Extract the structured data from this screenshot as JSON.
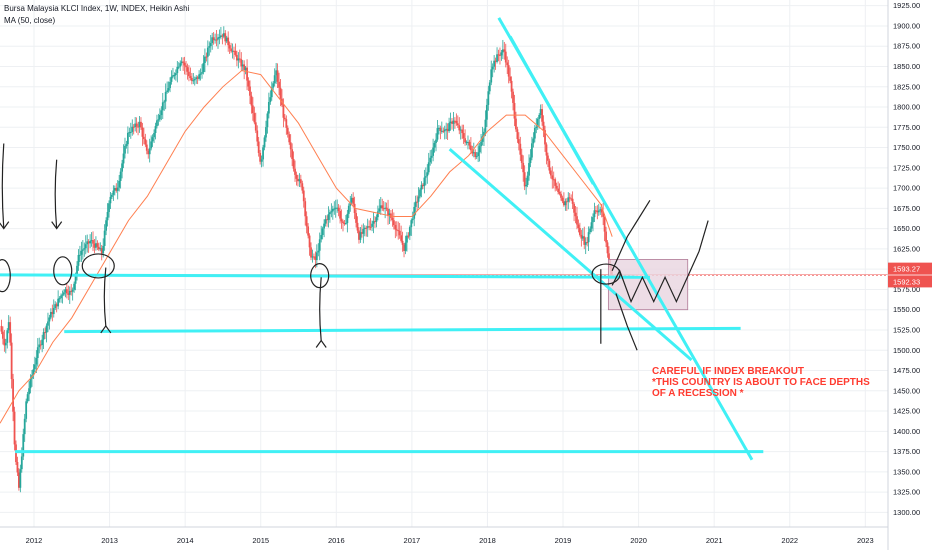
{
  "header": {
    "title": "Bursa Malaysia KLCI Index, 1W, INDEX, Heikin Ashi",
    "indicator": "MA (50, close)"
  },
  "colors": {
    "up": "#26a69a",
    "down": "#ef5350",
    "ma": "#ff7f50",
    "trendline": "#40f0f5",
    "annotation": "#ff3b30",
    "box": "#e8d5e0",
    "price_badge": "#ef5350",
    "grid": "#eef0f3"
  },
  "annotation": {
    "lines": [
      "CAREFUL IF INDEX BREAKOUT",
      "*THIS COUNTRY IS ABOUT TO FACE DEPTHS",
      "OF A RECESSION *"
    ]
  },
  "price_labels": {
    "last": "1593.27",
    "ma": "1592.33"
  },
  "chart_data": {
    "type": "candlestick",
    "style": "Heikin Ashi",
    "interval": "1W",
    "xlim": [
      2011.55,
      2023.3
    ],
    "ylim": [
      1282,
      1932
    ],
    "x_ticks": [
      "2012",
      "2013",
      "2014",
      "2015",
      "2016",
      "2017",
      "2018",
      "2019",
      "2020",
      "2021",
      "2022",
      "2023"
    ],
    "y_ticks": [
      1300,
      1325,
      1350,
      1375,
      1400,
      1425,
      1450,
      1475,
      1500,
      1525,
      1550,
      1575,
      1600,
      1625,
      1650,
      1675,
      1700,
      1725,
      1750,
      1775,
      1800,
      1825,
      1850,
      1875,
      1900,
      1925
    ],
    "anchors": [
      [
        2011.55,
        1530
      ],
      [
        2011.62,
        1505
      ],
      [
        2011.67,
        1540
      ],
      [
        2011.75,
        1370
      ],
      [
        2011.8,
        1330
      ],
      [
        2011.9,
        1440
      ],
      [
        2012.05,
        1500
      ],
      [
        2012.2,
        1540
      ],
      [
        2012.4,
        1575
      ],
      [
        2012.5,
        1570
      ],
      [
        2012.6,
        1620
      ],
      [
        2012.75,
        1635
      ],
      [
        2012.9,
        1620
      ],
      [
        2013.0,
        1690
      ],
      [
        2013.1,
        1700
      ],
      [
        2013.25,
        1770
      ],
      [
        2013.4,
        1780
      ],
      [
        2013.5,
        1740
      ],
      [
        2013.65,
        1790
      ],
      [
        2013.8,
        1830
      ],
      [
        2013.95,
        1860
      ],
      [
        2014.1,
        1830
      ],
      [
        2014.2,
        1840
      ],
      [
        2014.35,
        1885
      ],
      [
        2014.5,
        1890
      ],
      [
        2014.65,
        1865
      ],
      [
        2014.8,
        1845
      ],
      [
        2014.95,
        1760
      ],
      [
        2015.0,
        1730
      ],
      [
        2015.1,
        1800
      ],
      [
        2015.2,
        1845
      ],
      [
        2015.3,
        1790
      ],
      [
        2015.45,
        1720
      ],
      [
        2015.55,
        1700
      ],
      [
        2015.65,
        1620
      ],
      [
        2015.72,
        1610
      ],
      [
        2015.85,
        1660
      ],
      [
        2016.0,
        1680
      ],
      [
        2016.1,
        1650
      ],
      [
        2016.2,
        1690
      ],
      [
        2016.3,
        1640
      ],
      [
        2016.5,
        1660
      ],
      [
        2016.6,
        1680
      ],
      [
        2016.75,
        1660
      ],
      [
        2016.9,
        1625
      ],
      [
        2017.05,
        1680
      ],
      [
        2017.2,
        1720
      ],
      [
        2017.35,
        1775
      ],
      [
        2017.45,
        1770
      ],
      [
        2017.55,
        1785
      ],
      [
        2017.7,
        1760
      ],
      [
        2017.85,
        1740
      ],
      [
        2017.95,
        1765
      ],
      [
        2018.05,
        1850
      ],
      [
        2018.15,
        1865
      ],
      [
        2018.22,
        1870
      ],
      [
        2018.3,
        1830
      ],
      [
        2018.4,
        1760
      ],
      [
        2018.5,
        1700
      ],
      [
        2018.6,
        1760
      ],
      [
        2018.7,
        1800
      ],
      [
        2018.8,
        1730
      ],
      [
        2018.9,
        1700
      ],
      [
        2019.0,
        1680
      ],
      [
        2019.1,
        1690
      ],
      [
        2019.2,
        1650
      ],
      [
        2019.3,
        1630
      ],
      [
        2019.42,
        1675
      ],
      [
        2019.52,
        1670
      ],
      [
        2019.6,
        1610
      ],
      [
        2019.65,
        1595
      ]
    ],
    "moving_average": {
      "name": "MA (50, close)",
      "points": [
        [
          2011.55,
          1410
        ],
        [
          2011.8,
          1450
        ],
        [
          2012.0,
          1470
        ],
        [
          2012.25,
          1510
        ],
        [
          2012.5,
          1540
        ],
        [
          2012.75,
          1580
        ],
        [
          2013.0,
          1620
        ],
        [
          2013.25,
          1660
        ],
        [
          2013.5,
          1690
        ],
        [
          2013.75,
          1730
        ],
        [
          2014.0,
          1770
        ],
        [
          2014.25,
          1800
        ],
        [
          2014.5,
          1825
        ],
        [
          2014.75,
          1845
        ],
        [
          2015.0,
          1840
        ],
        [
          2015.25,
          1810
        ],
        [
          2015.5,
          1780
        ],
        [
          2015.75,
          1740
        ],
        [
          2016.0,
          1700
        ],
        [
          2016.25,
          1675
        ],
        [
          2016.5,
          1670
        ],
        [
          2016.75,
          1665
        ],
        [
          2017.0,
          1665
        ],
        [
          2017.25,
          1690
        ],
        [
          2017.5,
          1720
        ],
        [
          2017.75,
          1740
        ],
        [
          2018.0,
          1770
        ],
        [
          2018.25,
          1790
        ],
        [
          2018.5,
          1790
        ],
        [
          2018.75,
          1770
        ],
        [
          2019.0,
          1740
        ],
        [
          2019.25,
          1710
        ],
        [
          2019.5,
          1680
        ],
        [
          2019.65,
          1640
        ]
      ]
    },
    "drawings": {
      "support_lines": [
        {
          "from": [
            2011.55,
            1593
          ],
          "to": [
            2020.15,
            1590
          ]
        },
        {
          "from": [
            2012.4,
            1523
          ],
          "to": [
            2021.35,
            1527
          ]
        },
        {
          "from": [
            2011.75,
            1375
          ],
          "to": [
            2021.65,
            1375
          ]
        }
      ],
      "trend_lines": [
        {
          "from": [
            2018.15,
            1910
          ],
          "to": [
            2021.5,
            1365
          ]
        },
        {
          "from": [
            2018.3,
            1887
          ],
          "to": [
            2019.4,
            1705
          ]
        },
        {
          "from": [
            2017.5,
            1748
          ],
          "to": [
            2020.7,
            1488
          ]
        }
      ],
      "box": {
        "x": [
          2019.6,
          2020.65
        ],
        "y": [
          1550,
          1612
        ]
      },
      "price_lines": [
        1593.27,
        1592.33
      ]
    }
  }
}
